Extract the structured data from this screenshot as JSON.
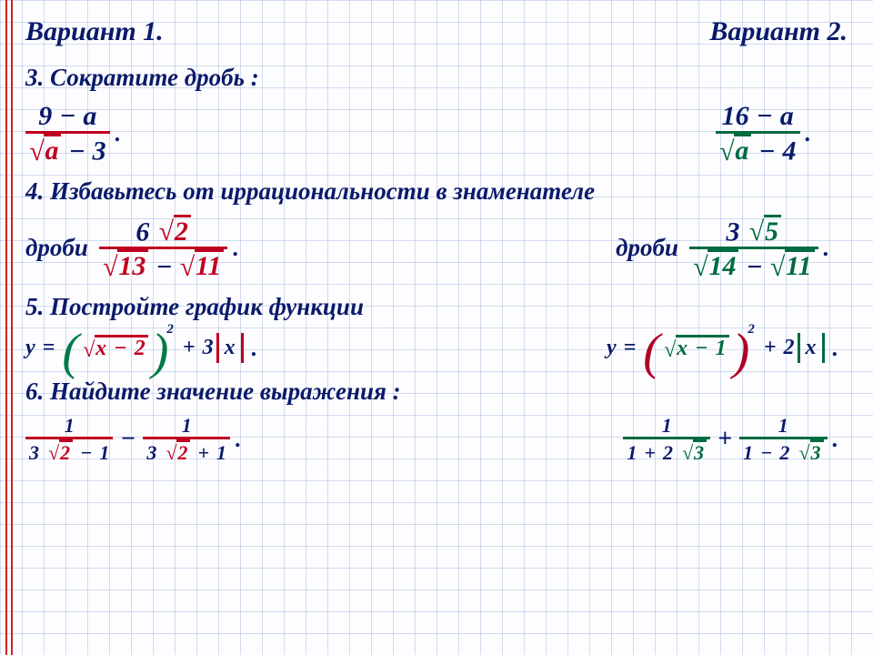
{
  "colors": {
    "text": "#0a1a6a",
    "v1_accent": "#c00020",
    "v2_accent": "#006a40",
    "v1_paren": "#007a4a",
    "v2_paren": "#b00025",
    "grid": "#6a8ad0",
    "margin_rule": "#c22",
    "background": "#fdfdff"
  },
  "font": {
    "family": "Times New Roman",
    "style": "italic",
    "heading_size_pt": 22,
    "math_size_pt": 20
  },
  "header": {
    "v1": "Вариант 1.",
    "v2": "Вариант 2."
  },
  "t3": {
    "title": "3. Сократите дробь :",
    "v1": {
      "num_l": "9",
      "num_op": "−",
      "num_r": "a",
      "den_rad": "a",
      "den_op": "−",
      "den_r": "3"
    },
    "v2": {
      "num_l": "16",
      "num_op": "−",
      "num_r": "a",
      "den_rad": "a",
      "den_op": "−",
      "den_r": "4"
    }
  },
  "t4": {
    "title": "4. Избавьтесь от иррациональности в знаменателе",
    "word": "дроби",
    "v1": {
      "num_c": "6",
      "num_rad": "2",
      "den_l": "13",
      "den_op": "−",
      "den_r": "11"
    },
    "v2": {
      "num_c": "3",
      "num_rad": "5",
      "den_l": "14",
      "den_op": "−",
      "den_r": "11"
    }
  },
  "t5": {
    "title": "5. Постройте график функции",
    "y": "y",
    "eq": "=",
    "x": "x",
    "plus": "+",
    "minus": "−",
    "v1": {
      "inner_c": "2",
      "outer_c": "3",
      "pow": "2"
    },
    "v2": {
      "inner_c": "1",
      "outer_c": "2",
      "pow": "2"
    }
  },
  "t6": {
    "title": "6. Найдите значение выражения :",
    "one": "1",
    "v1": {
      "a": "3",
      "b": "2",
      "c": "1",
      "mid": "−",
      "d1op": "−",
      "d2op": "+"
    },
    "v2": {
      "a": "1",
      "b": "2",
      "c": "3",
      "mid": "+",
      "d1op": "+",
      "d2op": "−"
    }
  },
  "period": "."
}
